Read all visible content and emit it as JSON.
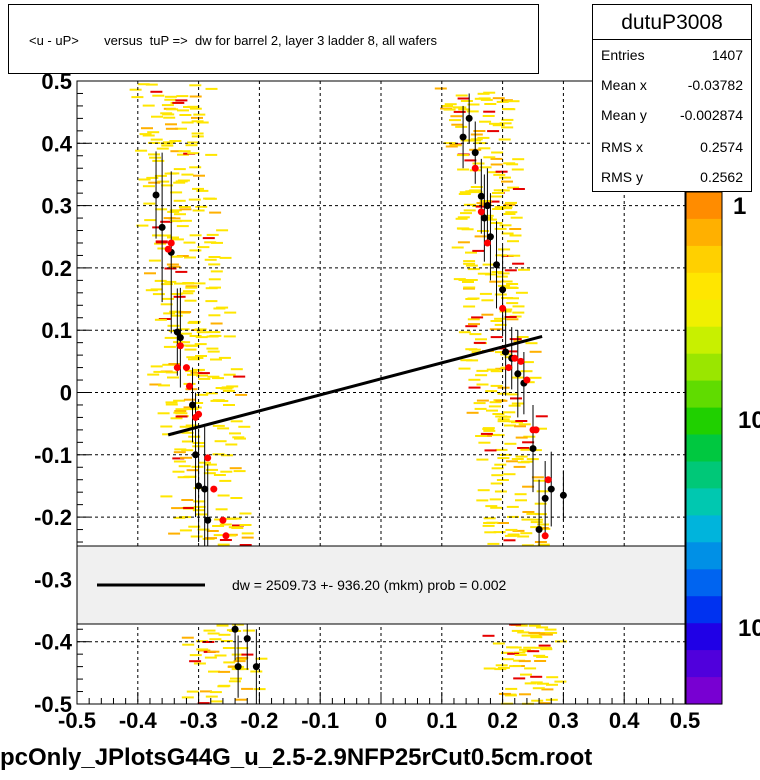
{
  "header": {
    "title": "<u - uP>       versus  tuP =>  dw for barrel 2, layer 3 ladder 8, all wafers"
  },
  "stats": {
    "name": "dutuP3008",
    "rows": [
      {
        "label": "Entries",
        "value": "1407"
      },
      {
        "label": "Mean x",
        "value": "-0.03782"
      },
      {
        "label": "Mean y",
        "value": "-0.002874"
      },
      {
        "label": "RMS x",
        "value": "0.2574"
      },
      {
        "label": "RMS y",
        "value": "0.2562"
      }
    ]
  },
  "legend": {
    "text": "dw = 2509.73 +- 936.20 (mkm) prob = 0.002"
  },
  "footer": {
    "filename": "pcOnly_JPlotsG44G_u_2.5-2.9NFP25rCut0.5cm.root"
  },
  "colors": {
    "hist_yellow": "#ffe600",
    "hist_orange": "#ffb000",
    "hist_red": "#e60000",
    "black_points": "#000000",
    "red_points": "#ff0000",
    "fit_line": "#000000",
    "legend_fill": "#f0f0f0"
  },
  "chart_data": {
    "type": "scatter",
    "xlim": [
      -0.5,
      0.5
    ],
    "ylim": [
      -0.5,
      0.5
    ],
    "x_ticks": [
      "-0.5",
      "-0.4",
      "-0.3",
      "-0.2",
      "-0.1",
      "0",
      "0.1",
      "0.2",
      "0.3",
      "0.4",
      "0.5"
    ],
    "y_ticks": [
      "-0.5",
      "-0.4",
      "-0.3",
      "-0.2",
      "-0.1",
      "0",
      "0.1",
      "0.2",
      "0.3",
      "0.4",
      "0.5"
    ],
    "grid": true,
    "palette_labels": [
      "1",
      "10",
      "10"
    ],
    "fit_line": {
      "x": [
        -0.35,
        0.265
      ],
      "y": [
        -0.068,
        0.09
      ]
    },
    "black_points": {
      "x": [
        -0.37,
        -0.36,
        -0.345,
        -0.335,
        -0.33,
        -0.31,
        -0.305,
        -0.3,
        -0.29,
        -0.285,
        -0.24,
        -0.235,
        -0.22,
        -0.205,
        0.135,
        0.145,
        0.155,
        0.165,
        0.17,
        0.175,
        0.18,
        0.19,
        0.2,
        0.205,
        0.215,
        0.225,
        0.235,
        0.25,
        0.26,
        0.27,
        0.28,
        0.3
      ],
      "y": [
        0.317,
        0.265,
        0.225,
        0.097,
        0.088,
        -0.02,
        -0.1,
        -0.15,
        -0.155,
        -0.205,
        -0.38,
        -0.44,
        -0.395,
        -0.44,
        0.41,
        0.44,
        0.385,
        0.315,
        0.28,
        0.3,
        0.25,
        0.205,
        0.165,
        0.065,
        0.055,
        0.03,
        0.015,
        -0.09,
        -0.22,
        -0.17,
        -0.155,
        -0.165
      ],
      "yerr": [
        0.07,
        0.12,
        0.13,
        0.07,
        0.08,
        0.06,
        0.1,
        0.09,
        0.1,
        0.09,
        0.05,
        0.05,
        0.05,
        0.06,
        0.05,
        0.04,
        0.05,
        0.06,
        0.07,
        0.06,
        0.07,
        0.07,
        0.07,
        0.07,
        0.05,
        0.07,
        0.05,
        0.07,
        0.08,
        0.06,
        0.06,
        0.04
      ]
    },
    "red_points": {
      "x": [
        -0.35,
        -0.345,
        -0.335,
        -0.33,
        -0.32,
        -0.315,
        -0.305,
        -0.3,
        -0.285,
        -0.275,
        -0.26,
        -0.255,
        0.155,
        0.165,
        0.175,
        0.2,
        0.21,
        0.22,
        0.23,
        0.24,
        0.25,
        0.255,
        0.27,
        0.275
      ],
      "y": [
        0.23,
        0.24,
        0.04,
        0.075,
        0.04,
        0.01,
        -0.04,
        -0.035,
        -0.105,
        -0.155,
        -0.205,
        -0.23,
        0.36,
        0.29,
        0.24,
        0.135,
        0.04,
        0.055,
        0.05,
        0.02,
        -0.06,
        -0.06,
        -0.23,
        -0.14
      ]
    }
  }
}
